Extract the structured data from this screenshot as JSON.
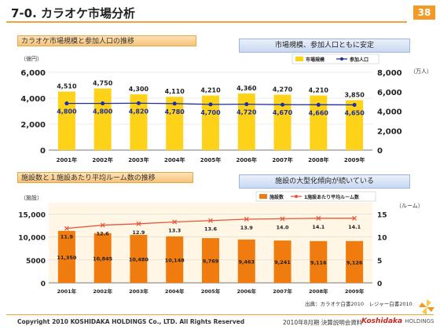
{
  "page": {
    "title": "7-0. カラオケ市場分析",
    "number": "38"
  },
  "chart1": {
    "section_title": "カラオケ市場規模と参加人口の推移",
    "callout": "市場規模、参加人口ともに安定",
    "left_unit": "（億円）",
    "right_unit": "（万人）",
    "legend": [
      "市場規模",
      "参加人口"
    ]
  },
  "chart2": {
    "section_title": "施設数と１施設あたり平均ルーム数の推移",
    "callout": "施設の大型化傾向が続いている",
    "left_unit": "（施設）",
    "right_unit": "（ルーム）",
    "legend": [
      "施設数",
      "1施設あたり平均ルーム数"
    ]
  },
  "source": "出典：カラオケ白書2010　レジャー白書2010",
  "footer": {
    "copyright": "Copyright 2010 KOSHIDAKA HOLDINGS Co., LTD. All Rights Reserved",
    "meeting": "2010年8月期 決算説明会資料",
    "logo_main": "Koshidaka",
    "logo_sub": "HOLDINGS"
  },
  "colors": {
    "accent": "#f29a25",
    "market_bar": "#ffd21a",
    "participants_line": "#1c2f9e",
    "facility_bar": "#f07c10",
    "rooms_line": "#e8563a"
  },
  "chart_data": [
    {
      "type": "bar",
      "categories": [
        "2001年",
        "2002年",
        "2003年",
        "2004年",
        "2005年",
        "2006年",
        "2007年",
        "2008年",
        "2009年"
      ],
      "series": [
        {
          "name": "市場規模",
          "kind": "bar",
          "axis": "left",
          "values": [
            4510,
            4750,
            4300,
            4110,
            4210,
            4360,
            4270,
            4210,
            3850
          ]
        },
        {
          "name": "参加人口",
          "kind": "line",
          "axis": "right",
          "values": [
            4800,
            4800,
            4820,
            4780,
            4700,
            4720,
            4670,
            4660,
            4650
          ]
        }
      ],
      "left_ticks": [
        "0",
        "2,000",
        "4,000",
        "6,000"
      ],
      "right_ticks": [
        "0",
        "2,000",
        "4,000",
        "6,000",
        "8,000"
      ],
      "ylim_left": [
        0,
        6000
      ],
      "ylim_right": [
        0,
        8000
      ],
      "bar_labels": [
        "4,510",
        "4,750",
        "4,300",
        "4,110",
        "4,210",
        "4,360",
        "4,270",
        "4,210",
        "3,850"
      ],
      "line_labels": [
        "4,800",
        "4,800",
        "4,820",
        "4,780",
        "4,700",
        "4,720",
        "4,670",
        "4,660",
        "4,650"
      ],
      "legend_position": "top-right",
      "grid": true
    },
    {
      "type": "bar",
      "categories": [
        "2001年",
        "2002年",
        "2003年",
        "2004年",
        "2005年",
        "2006年",
        "2007年",
        "2008年",
        "2009年"
      ],
      "series": [
        {
          "name": "施設数",
          "kind": "bar",
          "axis": "left",
          "values": [
            11350,
            10845,
            10480,
            10148,
            9769,
            9463,
            9241,
            9116,
            9126
          ]
        },
        {
          "name": "1施設あたり平均ルーム数",
          "kind": "line",
          "axis": "right",
          "values": [
            11.9,
            12.6,
            12.9,
            13.3,
            13.6,
            13.9,
            14.0,
            14.1,
            14.1
          ]
        }
      ],
      "left_ticks": [
        "0",
        "5000",
        "10,000",
        "15,000"
      ],
      "right_ticks": [
        "0",
        "5",
        "10",
        "15"
      ],
      "ylim_left": [
        0,
        17500
      ],
      "ylim_right": [
        0,
        17.5
      ],
      "bar_labels": [
        "11,350",
        "10,845",
        "10,480",
        "10,148",
        "9,769",
        "9,463",
        "9,241",
        "9,116",
        "9,126"
      ],
      "line_labels": [
        "11.9",
        "12.6",
        "12.9",
        "13.3",
        "13.6",
        "13.9",
        "14.0",
        "14.1",
        "14.1"
      ],
      "legend_position": "top-right",
      "grid": true
    }
  ]
}
